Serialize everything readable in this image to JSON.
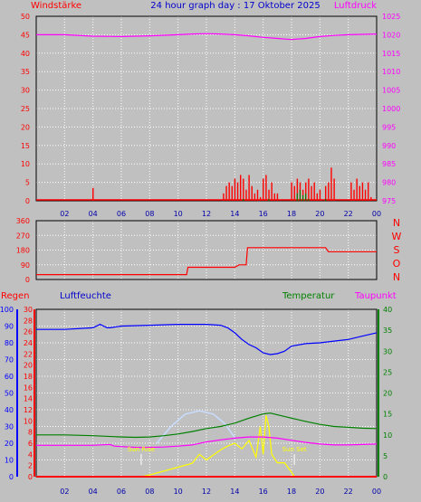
{
  "header": {
    "title": "24 hour graph day : 17 Oktober 2025",
    "left_label": "Windstärke",
    "right_label": "Luftdruck"
  },
  "colors": {
    "background": "#c0c0c0",
    "grid": "#ffffff",
    "wind": "#ff0000",
    "gust": "#008000",
    "pressure": "#ff00ff",
    "direction": "#ff0000",
    "humidity": "#0000ff",
    "temperature": "#008000",
    "dewpoint": "#ff00ff",
    "rain": "#ff0000",
    "solar": "#ffff00",
    "uv": "#c8dcff",
    "axis_time": "#0000aa"
  },
  "x_ticks": [
    "02",
    "04",
    "06",
    "08",
    "10",
    "12",
    "14",
    "16",
    "18",
    "20",
    "22",
    "00"
  ],
  "panel3_labels": {
    "rain": "Regen",
    "humidity": "Luftfeuchte",
    "temperature": "Temperatur",
    "dewpoint": "Taupunkt"
  },
  "direction_letters": [
    "N",
    "W",
    "S",
    "O",
    "N"
  ],
  "sun_labels": {
    "rise": "Sun Rise",
    "set": "Sun Set",
    "rise_hour": 7.4,
    "set_hour": 18.2
  },
  "chart_data": [
    {
      "type": "bar",
      "name": "wind",
      "x_range": [
        0,
        24
      ],
      "left_axis": {
        "label": "Windstärke",
        "ticks": [
          0,
          5,
          10,
          15,
          20,
          25,
          30,
          35,
          40,
          45,
          50
        ],
        "range": [
          0,
          50
        ]
      },
      "right_axis": {
        "label": "Luftdruck",
        "ticks": [
          975,
          980,
          985,
          990,
          995,
          1000,
          1005,
          1010,
          1015,
          1020,
          1025
        ],
        "range": [
          975,
          1025
        ]
      },
      "pressure": {
        "x": [
          0,
          2,
          4,
          6,
          8,
          10,
          11,
          12,
          13,
          14,
          15,
          16,
          17,
          18,
          19,
          20,
          21,
          22,
          23,
          24
        ],
        "values": [
          1020,
          1020,
          1019.6,
          1019.5,
          1019.7,
          1020,
          1020.2,
          1020.3,
          1020.2,
          1020,
          1019.7,
          1019.3,
          1019,
          1018.7,
          1019,
          1019.5,
          1019.8,
          1020,
          1020.1,
          1020.2
        ]
      },
      "wind_bars": {
        "x": [
          4.0,
          13.2,
          13.4,
          13.6,
          13.8,
          14.0,
          14.2,
          14.4,
          14.6,
          14.8,
          15.0,
          15.2,
          15.4,
          15.6,
          15.8,
          16.0,
          16.2,
          16.4,
          16.6,
          16.8,
          17.0,
          18.0,
          18.2,
          18.4,
          18.6,
          18.8,
          19.0,
          19.2,
          19.4,
          19.6,
          19.8,
          20.0,
          20.4,
          20.6,
          20.8,
          21.0,
          22.2,
          22.4,
          22.6,
          22.8,
          23.0,
          23.2,
          23.4,
          23.6
        ],
        "values": [
          3.5,
          2,
          4,
          5,
          4,
          6,
          5,
          7,
          6,
          3,
          7,
          4,
          2,
          3,
          1,
          6,
          7,
          3,
          5,
          2,
          2,
          5,
          4,
          6,
          5,
          3,
          5,
          6,
          4,
          5,
          2,
          3,
          4,
          5,
          9,
          6,
          5,
          3,
          6,
          4,
          5,
          3,
          5,
          1
        ]
      },
      "gust_bars": {
        "x": [
          14.6,
          16.4,
          18.4,
          18.6,
          18.8,
          19.0,
          19.2,
          20.4
        ],
        "values": [
          0.5,
          0.5,
          2,
          3,
          1.5,
          2,
          0.5,
          0.5
        ]
      }
    },
    {
      "type": "line",
      "name": "direction",
      "x_range": [
        0,
        24
      ],
      "left_axis": {
        "ticks": [
          0,
          90,
          180,
          270,
          360
        ],
        "range": [
          0,
          360
        ]
      },
      "series": [
        {
          "x": [
            0,
            10.6,
            10.7,
            14,
            14.3,
            14.8,
            14.9,
            20.4,
            20.6,
            24
          ],
          "values": [
            30,
            30,
            75,
            75,
            90,
            90,
            195,
            195,
            170,
            170
          ]
        }
      ]
    },
    {
      "type": "line",
      "name": "climate",
      "x_range": [
        0,
        24
      ],
      "humidity_axis": {
        "ticks": [
          0,
          10,
          20,
          30,
          40,
          50,
          60,
          70,
          80,
          90,
          100
        ],
        "range": [
          0,
          100
        ]
      },
      "rain_axis": {
        "ticks": [
          0,
          2,
          4,
          6,
          8,
          10,
          12,
          14,
          16,
          18,
          20,
          22,
          24,
          26,
          28,
          30
        ],
        "range": [
          0,
          30
        ]
      },
      "temperature_axis": {
        "ticks": [
          0,
          5,
          10,
          15,
          20,
          25,
          30,
          35,
          40
        ],
        "range": [
          0,
          40
        ]
      },
      "humidity": {
        "x": [
          0,
          2,
          4,
          4.5,
          5,
          5.2,
          6,
          8,
          10,
          12,
          13,
          13.5,
          14,
          14.5,
          15,
          15.5,
          16,
          16.5,
          17,
          17.5,
          18,
          19,
          20,
          21,
          22,
          23,
          24
        ],
        "values": [
          88,
          88,
          89,
          91,
          89,
          89,
          90,
          90.5,
          91,
          91,
          90.5,
          89,
          86,
          82,
          79,
          77,
          74,
          73,
          73.5,
          75,
          78,
          79.5,
          80,
          81,
          82,
          84,
          86
        ]
      },
      "temperature": {
        "x": [
          0,
          2,
          4,
          6,
          7,
          8,
          9,
          10,
          11,
          12,
          13,
          14,
          15,
          16,
          16.5,
          17,
          18,
          19,
          20,
          21,
          22,
          23,
          24
        ],
        "values": [
          10,
          10,
          9.8,
          9.5,
          9.4,
          9.5,
          9.8,
          10.2,
          10.8,
          11.5,
          12,
          12.8,
          14,
          15,
          15.2,
          14.8,
          14,
          13.2,
          12.5,
          12,
          11.8,
          11.6,
          11.5
        ]
      },
      "dewpoint": {
        "x": [
          0,
          2,
          4,
          5.2,
          5.5,
          6,
          7,
          8,
          9,
          10,
          11,
          12,
          13,
          14,
          15,
          16,
          17,
          18,
          19,
          20,
          21,
          22,
          23,
          24
        ],
        "values": [
          7.5,
          7.5,
          7.5,
          7.7,
          7.3,
          7.2,
          7,
          7,
          7.1,
          7.3,
          7.6,
          8.3,
          8.8,
          9.2,
          9.5,
          9.5,
          9.2,
          8.7,
          8.2,
          7.8,
          7.6,
          7.6,
          7.7,
          7.8
        ]
      },
      "rain": {
        "x": [
          0,
          24
        ],
        "values": [
          0,
          0
        ]
      },
      "solar": {
        "x": [
          7.4,
          8,
          9,
          10,
          11,
          11.5,
          12,
          13,
          13.5,
          14,
          14.5,
          15,
          15.5,
          15.8,
          16,
          16.2,
          16.4,
          16.6,
          17,
          17.5,
          18,
          18.2
        ],
        "values": [
          0,
          0.3,
          1,
          1.7,
          2.4,
          4,
          3,
          4.8,
          5.5,
          6,
          5,
          6.5,
          3.5,
          9,
          4,
          11,
          9,
          4,
          2.5,
          2.5,
          0.8,
          0
        ]
      },
      "uv": {
        "x": [
          8.5,
          9.5,
          10.5,
          11.5,
          12.5,
          13.3,
          14
        ],
        "values": [
          6,
          9,
          11.2,
          11.8,
          11.2,
          9.5,
          7
        ]
      }
    }
  ]
}
